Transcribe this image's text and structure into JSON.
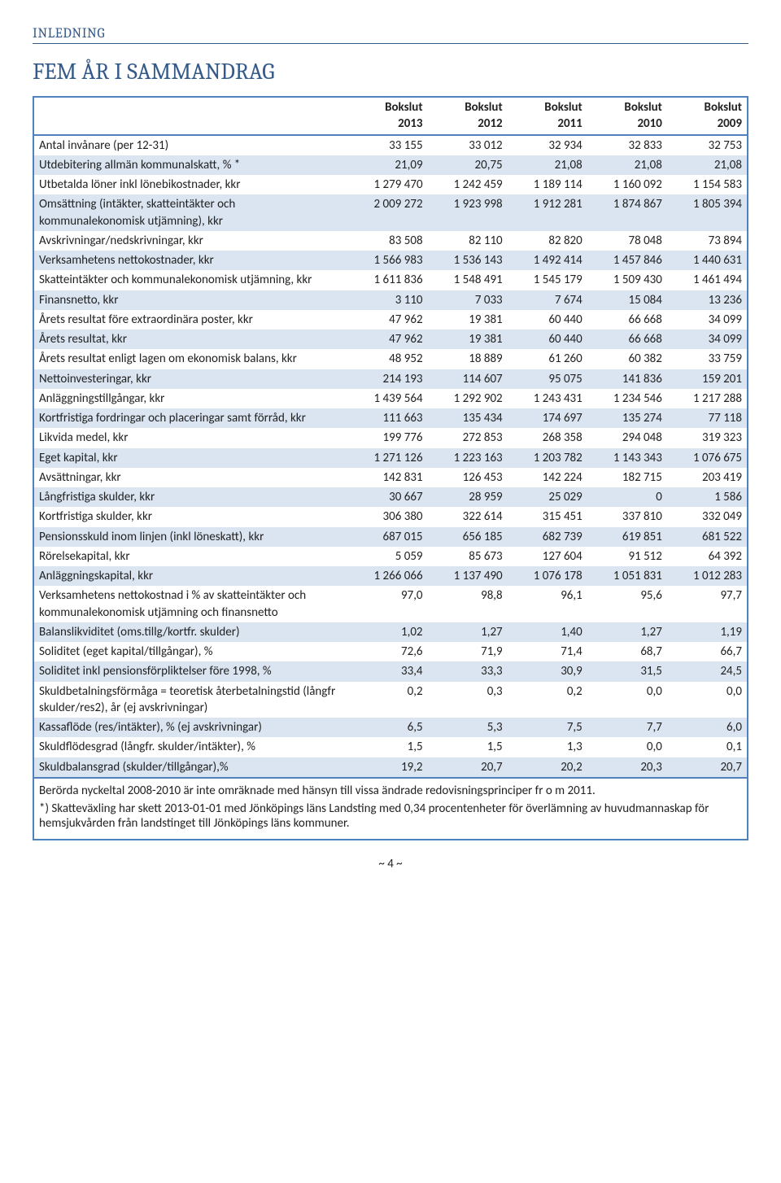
{
  "section": "INLEDNING",
  "title": "FEM ÅR I SAMMANDRAG",
  "page_number": "~ 4 ~",
  "header_label": "Bokslut",
  "years": [
    "2013",
    "2012",
    "2011",
    "2010",
    "2009"
  ],
  "rows": [
    {
      "label": "Antal invånare (per 12-31)",
      "v": [
        "33 155",
        "33 012",
        "32 934",
        "32 833",
        "32 753"
      ]
    },
    {
      "label": "Utdebitering allmän kommunalskatt, % *",
      "v": [
        "21,09",
        "20,75",
        "21,08",
        "21,08",
        "21,08"
      ]
    },
    {
      "label": "Utbetalda löner inkl lönebikostnader, kkr",
      "v": [
        "1 279 470",
        "1 242 459",
        "1 189 114",
        "1 160 092",
        "1 154 583"
      ]
    },
    {
      "label": "Omsättning (intäkter, skatteintäkter och kommunalekonomisk utjämning), kkr",
      "v": [
        "2 009 272",
        "1 923 998",
        "1 912 281",
        "1 874 867",
        "1 805 394"
      ]
    },
    {
      "label": "Avskrivningar/nedskrivningar, kkr",
      "v": [
        "83 508",
        "82 110",
        "82 820",
        "78 048",
        "73 894"
      ]
    },
    {
      "label": "Verksamhetens nettokostnader, kkr",
      "v": [
        "1 566 983",
        "1 536 143",
        "1 492 414",
        "1 457 846",
        "1 440 631"
      ]
    },
    {
      "label": "Skatteintäkter och kommunalekonomisk utjämning, kkr",
      "v": [
        "1 611 836",
        "1 548 491",
        "1 545 179",
        "1 509 430",
        "1 461 494"
      ]
    },
    {
      "label": "Finansnetto, kkr",
      "v": [
        "3 110",
        "7 033",
        "7 674",
        "15 084",
        "13 236"
      ]
    },
    {
      "label": "Årets resultat före extraordinära poster, kkr",
      "v": [
        "47 962",
        "19 381",
        "60 440",
        "66 668",
        "34 099"
      ]
    },
    {
      "label": "Årets resultat, kkr",
      "v": [
        "47 962",
        "19 381",
        "60 440",
        "66 668",
        "34 099"
      ]
    },
    {
      "label": "Årets resultat enligt lagen om ekonomisk balans, kkr",
      "v": [
        "48 952",
        "18 889",
        "61 260",
        "60 382",
        "33 759"
      ]
    },
    {
      "label": "Nettoinvesteringar, kkr",
      "v": [
        "214 193",
        "114 607",
        "95 075",
        "141 836",
        "159 201"
      ]
    },
    {
      "label": "Anläggningstillgångar, kkr",
      "v": [
        "1 439 564",
        "1 292 902",
        "1 243 431",
        "1 234 546",
        "1 217 288"
      ]
    },
    {
      "label": "Kortfristiga fordringar och placeringar samt förråd, kkr",
      "v": [
        "111 663",
        "135 434",
        "174 697",
        "135 274",
        "77 118"
      ]
    },
    {
      "label": "Likvida medel, kkr",
      "v": [
        "199 776",
        "272 853",
        "268 358",
        "294 048",
        "319 323"
      ]
    },
    {
      "label": "Eget kapital, kkr",
      "v": [
        "1 271 126",
        "1 223 163",
        "1 203 782",
        "1 143 343",
        "1 076 675"
      ]
    },
    {
      "label": "Avsättningar, kkr",
      "v": [
        "142 831",
        "126 453",
        "142 224",
        "182 715",
        "203 419"
      ]
    },
    {
      "label": "Långfristiga skulder, kkr",
      "v": [
        "30 667",
        "28 959",
        "25 029",
        "0",
        "1 586"
      ]
    },
    {
      "label": "Kortfristiga skulder, kkr",
      "v": [
        "306 380",
        "322 614",
        "315 451",
        "337 810",
        "332 049"
      ]
    },
    {
      "label": "Pensionsskuld inom linjen (inkl löneskatt), kkr",
      "v": [
        "687 015",
        "656 185",
        "682 739",
        "619 851",
        "681 522"
      ]
    },
    {
      "label": "Rörelsekapital, kkr",
      "v": [
        "5 059",
        "85 673",
        "127 604",
        "91 512",
        "64 392"
      ]
    },
    {
      "label": "Anläggningskapital, kkr",
      "v": [
        "1 266 066",
        "1 137 490",
        "1 076 178",
        "1 051 831",
        "1 012 283"
      ]
    },
    {
      "label": "Verksamhetens nettokostnad i % av skatteintäkter och kommunalekonomisk utjämning och finansnetto",
      "v": [
        "97,0",
        "98,8",
        "96,1",
        "95,6",
        "97,7"
      ]
    },
    {
      "label": "Balanslikviditet (oms.tillg/kortfr. skulder)",
      "v": [
        "1,02",
        "1,27",
        "1,40",
        "1,27",
        "1,19"
      ]
    },
    {
      "label": "Soliditet (eget kapital/tillgångar), %",
      "v": [
        "72,6",
        "71,9",
        "71,4",
        "68,7",
        "66,7"
      ]
    },
    {
      "label": "Soliditet inkl pensionsförpliktelser före 1998, %",
      "v": [
        "33,4",
        "33,3",
        "30,9",
        "31,5",
        "24,5"
      ]
    },
    {
      "label": "Skuldbetalningsförmåga = teoretisk återbetalningstid (långfr skulder/res2), år (ej avskrivningar)",
      "v": [
        "0,2",
        "0,3",
        "0,2",
        "0,0",
        "0,0"
      ]
    },
    {
      "label": "Kassaflöde (res/intäkter), % (ej avskrivningar)",
      "v": [
        "6,5",
        "5,3",
        "7,5",
        "7,7",
        "6,0"
      ]
    },
    {
      "label": "Skuldflödesgrad (långfr. skulder/intäkter), %",
      "v": [
        "1,5",
        "1,5",
        "1,3",
        "0,0",
        "0,1"
      ]
    },
    {
      "label": "Skuldbalansgrad (skulder/tillgångar),%",
      "v": [
        "19,2",
        "20,7",
        "20,2",
        "20,3",
        "20,7"
      ]
    }
  ],
  "footnotes": [
    "Berörda nyckeltal 2008-2010 är inte omräknade med hänsyn till vissa ändrade redovisningsprinciper fr o m 2011.",
    "*) Skatteväxling har skett 2013-01-01 med Jönköpings läns Landsting med 0,34 procentenheter för överlämning av huvudmannaskap för hemsjukvården från landstinget till Jönköpings läns kommuner."
  ],
  "colors": {
    "heading": "#345a8a",
    "border": "#4f81bd",
    "stripe": "#dbe5f1"
  }
}
